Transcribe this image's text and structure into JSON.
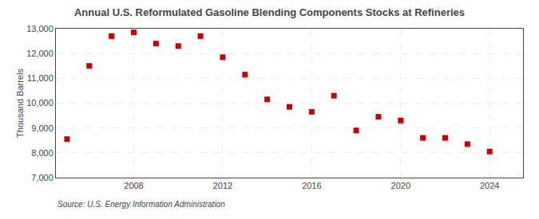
{
  "chart_data": {
    "type": "scatter",
    "title": "Annual U.S. Reformulated Gasoline Blending Components Stocks at Refineries",
    "ylabel": "Thousand Barrels",
    "annotations": [
      "Source: U.S. Energy Information Administration"
    ],
    "x": [
      2005,
      2006,
      2007,
      2008,
      2009,
      2010,
      2011,
      2012,
      2013,
      2014,
      2015,
      2016,
      2017,
      2018,
      2019,
      2020,
      2021,
      2022,
      2023,
      2024
    ],
    "values": [
      8550,
      11500,
      12700,
      12850,
      12400,
      12300,
      12700,
      11850,
      11150,
      10150,
      9850,
      9650,
      10300,
      8900,
      9450,
      9300,
      8600,
      8600,
      8350,
      8050
    ],
    "color": "#cc0000",
    "marker": "square",
    "xlim": [
      2004.5,
      2025.5
    ],
    "xticks": [
      2008,
      2012,
      2016,
      2020,
      2024
    ],
    "ylim": [
      7000,
      13000
    ],
    "yticks": [
      {
        "value": 7000,
        "label": "7,000"
      },
      {
        "value": 8000,
        "label": "8,000"
      },
      {
        "value": 9000,
        "label": "9,000"
      },
      {
        "value": 10000,
        "label": "10,000"
      },
      {
        "value": 11000,
        "label": "11,000"
      },
      {
        "value": 12000,
        "label": "12,000"
      },
      {
        "value": 13000,
        "label": "13,000"
      }
    ],
    "grid": true
  }
}
